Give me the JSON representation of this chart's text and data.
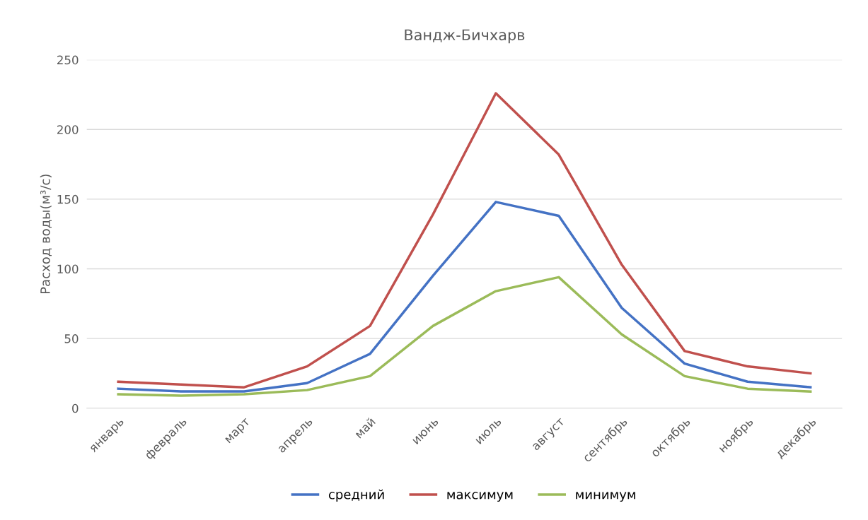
{
  "chart_data": {
    "type": "line",
    "title": "Вандж-Бичхарв",
    "ylabel": "Расход воды(м³/с)",
    "categories": [
      "январь",
      "февраль",
      "март",
      "апрель",
      "май",
      "июнь",
      "июль",
      "август",
      "сентябрь",
      "октябрь",
      "ноябрь",
      "декабрь"
    ],
    "series": [
      {
        "name": "средний",
        "color": "#4472c4",
        "values": [
          14,
          12,
          12,
          18,
          39,
          95,
          148,
          138,
          72,
          32,
          19,
          15
        ]
      },
      {
        "name": "максимум",
        "color": "#c0504d",
        "values": [
          19,
          17,
          15,
          30,
          59,
          139,
          226,
          182,
          103,
          41,
          30,
          25
        ]
      },
      {
        "name": "минимум",
        "color": "#9bbb59",
        "values": [
          10,
          9,
          10,
          13,
          23,
          59,
          84,
          94,
          53,
          23,
          14,
          12
        ]
      }
    ],
    "ylim": [
      0,
      250
    ],
    "yticks": [
      0,
      50,
      100,
      150,
      200,
      250
    ],
    "grid": "y",
    "legend": "bottom",
    "marker": "none",
    "line_style": "solid"
  }
}
